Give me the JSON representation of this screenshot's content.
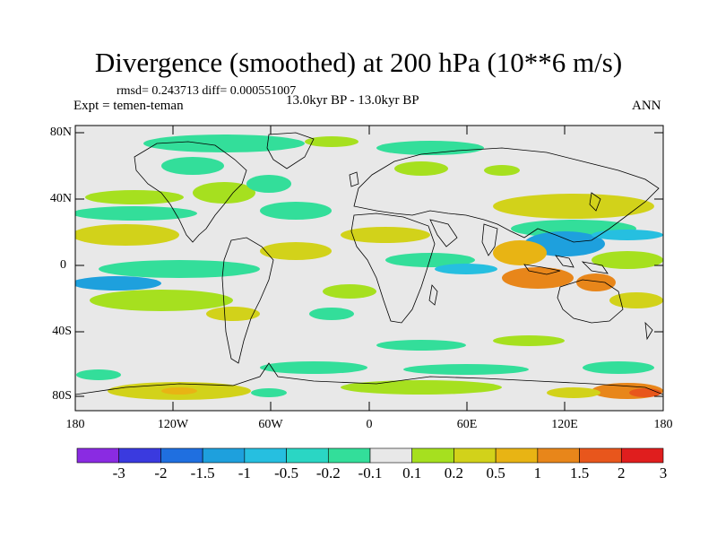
{
  "title": "Divergence (smoothed) at 200 hPa (10**6 m/s)",
  "stats": "rmsd= 0.243713 diff= 0.000551007",
  "experiment": "Expt = temen-teman",
  "period": "13.0kyr BP - 13.0kyr BP",
  "season": "ANN",
  "lat_labels": [
    "80N",
    "40N",
    "0",
    "40S",
    "80S"
  ],
  "lon_labels": [
    "180",
    "120W",
    "60W",
    "0",
    "60E",
    "120E",
    "180"
  ],
  "colorbar": {
    "labels": [
      "-3",
      "-2",
      "-1.5",
      "-1",
      "-0.5",
      "-0.2",
      "-0.1",
      "0.1",
      "0.2",
      "0.5",
      "1",
      "1.5",
      "2",
      "3"
    ],
    "colors": [
      "#8a2be2",
      "#3a3adf",
      "#1f6fe0",
      "#1ea0dd",
      "#26bfe0",
      "#2ad6c4",
      "#33de9a",
      "#e8e8e8",
      "#a6e01f",
      "#d2d21a",
      "#e8b414",
      "#e8861a",
      "#e8561c",
      "#e01e1e"
    ]
  },
  "colors": {
    "background": "#e8e8e8",
    "coast": "#000000"
  }
}
